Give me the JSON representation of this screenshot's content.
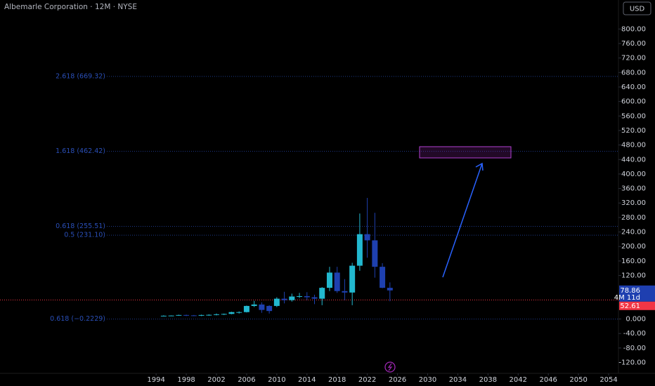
{
  "chart_data": {
    "type": "candlestick",
    "title": "Albemarle Corporation · 12M · NYSE",
    "currency": "USD",
    "x": [
      1995,
      1996,
      1997,
      1998,
      1999,
      2000,
      2001,
      2002,
      2003,
      2004,
      2005,
      2006,
      2007,
      2008,
      2009,
      2010,
      2011,
      2012,
      2013,
      2014,
      2015,
      2016,
      2017,
      2018,
      2019,
      2020,
      2021,
      2022,
      2023,
      2024,
      2025
    ],
    "open": [
      8,
      9,
      9.5,
      11,
      10,
      9,
      11,
      11.5,
      13,
      14,
      19,
      19,
      36,
      40,
      36,
      36,
      56,
      52,
      62,
      63,
      60,
      56,
      86,
      128,
      77,
      73,
      147,
      234,
      217,
      144,
      86
    ],
    "high": [
      10,
      10,
      12,
      12,
      11,
      12,
      13,
      15,
      15,
      20,
      21,
      37,
      50,
      46,
      38,
      60,
      75,
      70,
      72,
      74,
      67,
      88,
      144,
      144,
      110,
      155,
      291,
      334,
      293,
      154,
      101
    ],
    "low": [
      7,
      8,
      9,
      8,
      8,
      8,
      9,
      10,
      11,
      13,
      15,
      18,
      33,
      17,
      15,
      33,
      43,
      48,
      58,
      52,
      41,
      38,
      77,
      72,
      52,
      38,
      133,
      169,
      114,
      85,
      49
    ],
    "close": [
      9,
      9.5,
      11,
      10,
      9,
      11,
      11.5,
      13,
      14,
      19,
      19,
      36,
      40,
      25,
      22,
      56,
      52,
      62,
      63,
      60,
      56,
      86,
      128,
      77,
      73,
      147,
      234,
      217,
      144,
      86,
      78.86
    ],
    "up_color": "#22b8cf",
    "down_color": "#1e40af",
    "xlim": [
      1973.3,
      2055.3
    ],
    "ylim": [
      -150,
      880
    ],
    "xticks": [
      1994,
      1998,
      2002,
      2006,
      2010,
      2014,
      2018,
      2022,
      2026,
      2030,
      2034,
      2038,
      2042,
      2046,
      2050,
      2054
    ],
    "yticks": [
      {
        "value": 800,
        "label": "800.00"
      },
      {
        "value": 760,
        "label": "760.00"
      },
      {
        "value": 720,
        "label": "720.00"
      },
      {
        "value": 680,
        "label": "680.00"
      },
      {
        "value": 640,
        "label": "640.00"
      },
      {
        "value": 600,
        "label": "600.00"
      },
      {
        "value": 560,
        "label": "560.00"
      },
      {
        "value": 520,
        "label": "520.00"
      },
      {
        "value": 480,
        "label": "480.00"
      },
      {
        "value": 440,
        "label": "440.00"
      },
      {
        "value": 400,
        "label": "400.00"
      },
      {
        "value": 360,
        "label": "360.00"
      },
      {
        "value": 320,
        "label": "320.00"
      },
      {
        "value": 280,
        "label": "280.00"
      },
      {
        "value": 240,
        "label": "240.00"
      },
      {
        "value": 200,
        "label": "200.00"
      },
      {
        "value": 160,
        "label": "160.00"
      },
      {
        "value": 120,
        "label": "120.00"
      },
      {
        "value": 0,
        "label": "0.000"
      },
      {
        "value": -40,
        "label": "-40.00"
      },
      {
        "value": -80,
        "label": "-80.00"
      },
      {
        "value": -120,
        "label": "-120.00"
      }
    ],
    "fib_levels": [
      {
        "value": 669.32,
        "label": "2.618 (669.32)"
      },
      {
        "value": 462.42,
        "label": "1.618 (462.42)"
      },
      {
        "value": 255.51,
        "label": "0.618 (255.51)"
      },
      {
        "value": 231.1,
        "label": "0.5 (231.10)"
      },
      {
        "value": -0.2229,
        "label": "0.618 (−0.2229)"
      }
    ],
    "last_price": {
      "value": 78.86,
      "label": "78.86"
    },
    "countdown": "4M 11d",
    "prev_close": {
      "value": 52.61,
      "label": "52.61"
    }
  }
}
